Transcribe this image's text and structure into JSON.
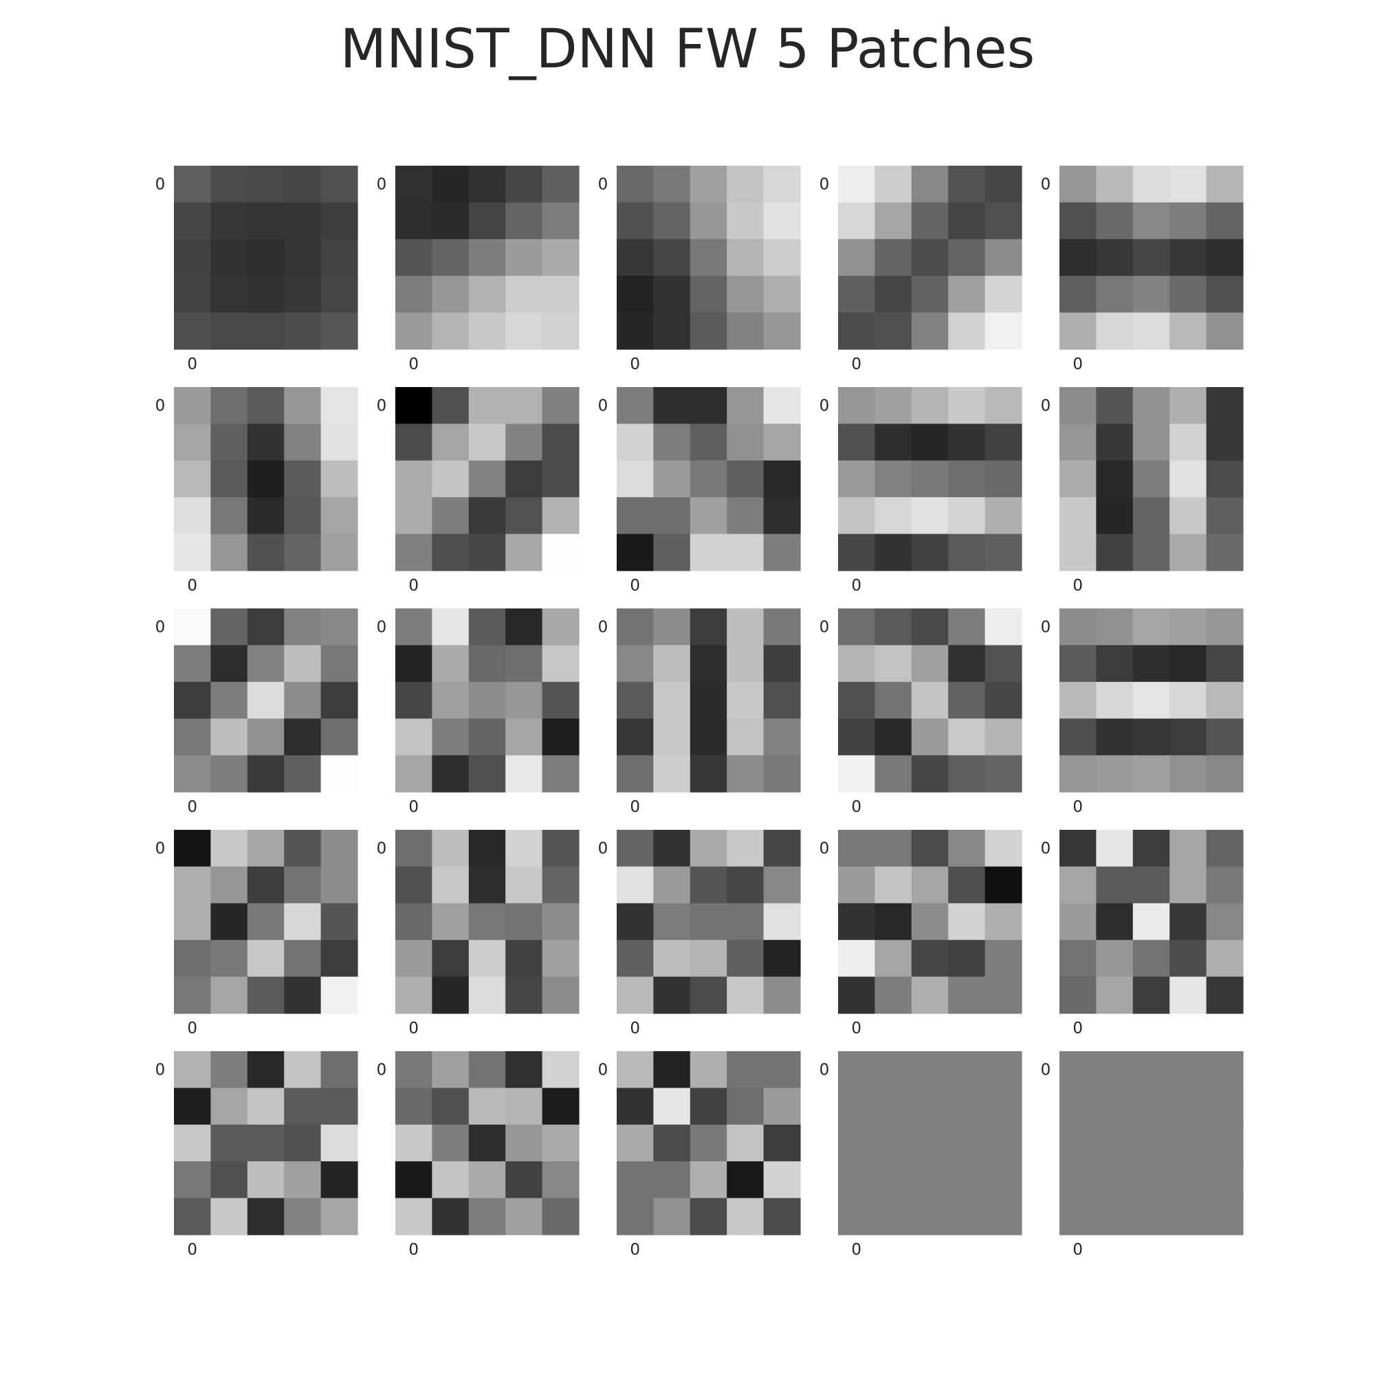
{
  "title": "MNIST_DNN FW 5 Patches",
  "chart_data": {
    "type": "heatmap",
    "title": "MNIST_DNN FW 5 Patches",
    "colormap": "gray",
    "grid": false,
    "layout": {
      "rows": 5,
      "cols": 5
    },
    "tick_label": "0",
    "patch_size": [
      5,
      5
    ],
    "patches": [
      [
        [
          95,
          75,
          72,
          70,
          80
        ],
        [
          70,
          55,
          52,
          53,
          62
        ],
        [
          65,
          50,
          45,
          52,
          66
        ],
        [
          66,
          52,
          50,
          55,
          70
        ],
        [
          78,
          72,
          72,
          75,
          86
        ]
      ],
      [
        [
          48,
          38,
          50,
          70,
          95
        ],
        [
          45,
          42,
          68,
          100,
          125
        ],
        [
          85,
          100,
          125,
          155,
          170
        ],
        [
          125,
          150,
          178,
          205,
          205
        ],
        [
          155,
          180,
          200,
          215,
          210
        ]
      ],
      [
        [
          105,
          120,
          160,
          195,
          215
        ],
        [
          80,
          100,
          150,
          200,
          225
        ],
        [
          55,
          70,
          120,
          180,
          205
        ],
        [
          35,
          50,
          100,
          150,
          175
        ],
        [
          38,
          50,
          90,
          130,
          150
        ]
      ],
      [
        [
          238,
          205,
          135,
          82,
          70
        ],
        [
          215,
          165,
          100,
          68,
          80
        ],
        [
          145,
          100,
          75,
          100,
          140
        ],
        [
          95,
          70,
          98,
          160,
          212
        ],
        [
          75,
          80,
          130,
          210,
          240
        ]
      ],
      [
        [
          150,
          185,
          220,
          225,
          182
        ],
        [
          80,
          105,
          135,
          125,
          100
        ],
        [
          45,
          55,
          70,
          55,
          45
        ],
        [
          95,
          120,
          130,
          105,
          80
        ],
        [
          175,
          215,
          220,
          185,
          145
        ]
      ],
      [
        [
          155,
          110,
          90,
          150,
          228
        ],
        [
          165,
          95,
          50,
          130,
          225
        ],
        [
          185,
          90,
          30,
          90,
          190
        ],
        [
          222,
          120,
          42,
          88,
          165
        ],
        [
          230,
          150,
          80,
          100,
          160
        ]
      ],
      [
        [
          0,
          80,
          178,
          178,
          128
        ],
        [
          75,
          165,
          200,
          130,
          75
        ],
        [
          172,
          195,
          130,
          60,
          75
        ],
        [
          172,
          125,
          58,
          82,
          178
        ],
        [
          128,
          78,
          70,
          168,
          253
        ]
      ],
      [
        [
          125,
          45,
          45,
          150,
          230
        ],
        [
          210,
          125,
          95,
          145,
          165
        ],
        [
          220,
          155,
          120,
          95,
          40
        ],
        [
          110,
          110,
          160,
          125,
          45
        ],
        [
          25,
          95,
          210,
          210,
          125
        ]
      ],
      [
        [
          150,
          160,
          180,
          200,
          185
        ],
        [
          80,
          45,
          38,
          50,
          65
        ],
        [
          155,
          130,
          120,
          110,
          105
        ],
        [
          195,
          215,
          225,
          212,
          175
        ],
        [
          70,
          50,
          65,
          90,
          95
        ]
      ],
      [
        [
          140,
          85,
          145,
          175,
          55
        ],
        [
          150,
          55,
          145,
          210,
          55
        ],
        [
          172,
          40,
          125,
          225,
          75
        ],
        [
          200,
          38,
          100,
          200,
          95
        ],
        [
          200,
          65,
          100,
          170,
          105
        ]
      ],
      [
        [
          250,
          100,
          60,
          130,
          135
        ],
        [
          125,
          45,
          130,
          190,
          120
        ],
        [
          60,
          125,
          220,
          140,
          60
        ],
        [
          120,
          190,
          145,
          45,
          110
        ],
        [
          140,
          125,
          58,
          95,
          253
        ]
      ],
      [
        [
          125,
          230,
          90,
          40,
          168
        ],
        [
          35,
          170,
          105,
          110,
          198
        ],
        [
          70,
          160,
          140,
          150,
          85
        ],
        [
          195,
          125,
          100,
          165,
          30
        ],
        [
          165,
          45,
          80,
          232,
          125
        ]
      ],
      [
        [
          115,
          140,
          60,
          190,
          120
        ],
        [
          135,
          190,
          45,
          190,
          62
        ],
        [
          90,
          200,
          42,
          200,
          80
        ],
        [
          55,
          200,
          42,
          195,
          130
        ],
        [
          110,
          205,
          55,
          140,
          120
        ]
      ],
      [
        [
          110,
          90,
          72,
          125,
          238
        ],
        [
          180,
          195,
          160,
          48,
          82
        ],
        [
          80,
          115,
          195,
          98,
          70
        ],
        [
          65,
          40,
          155,
          202,
          180
        ],
        [
          242,
          120,
          70,
          95,
          100
        ]
      ],
      [
        [
          140,
          145,
          165,
          160,
          150
        ],
        [
          90,
          60,
          45,
          40,
          70
        ],
        [
          185,
          215,
          228,
          215,
          185
        ],
        [
          78,
          50,
          55,
          60,
          85
        ],
        [
          150,
          155,
          160,
          145,
          135
        ]
      ],
      [
        [
          20,
          200,
          165,
          85,
          140
        ],
        [
          175,
          150,
          60,
          115,
          140
        ],
        [
          175,
          38,
          120,
          215,
          85
        ],
        [
          110,
          120,
          200,
          115,
          60
        ],
        [
          120,
          165,
          90,
          50,
          240
        ]
      ],
      [
        [
          110,
          190,
          40,
          210,
          85
        ],
        [
          80,
          200,
          45,
          200,
          100
        ],
        [
          105,
          160,
          120,
          115,
          140
        ],
        [
          155,
          60,
          205,
          65,
          160
        ],
        [
          175,
          38,
          220,
          70,
          140
        ]
      ],
      [
        [
          100,
          50,
          170,
          200,
          70
        ],
        [
          225,
          155,
          85,
          70,
          135
        ],
        [
          50,
          125,
          115,
          115,
          225
        ],
        [
          95,
          190,
          180,
          95,
          35
        ],
        [
          185,
          50,
          75,
          200,
          140
        ]
      ],
      [
        [
          120,
          120,
          75,
          135,
          210
        ],
        [
          155,
          195,
          165,
          78,
          15
        ],
        [
          50,
          40,
          140,
          210,
          175
        ],
        [
          238,
          165,
          70,
          65,
          125
        ],
        [
          50,
          125,
          175,
          125,
          125
        ]
      ],
      [
        [
          55,
          230,
          60,
          165,
          100
        ],
        [
          165,
          90,
          90,
          165,
          120
        ],
        [
          155,
          45,
          235,
          55,
          135
        ],
        [
          115,
          150,
          115,
          75,
          175
        ],
        [
          105,
          165,
          60,
          230,
          55
        ]
      ],
      [
        [
          178,
          125,
          40,
          195,
          110
        ],
        [
          30,
          165,
          195,
          90,
          90
        ],
        [
          200,
          90,
          90,
          80,
          220
        ],
        [
          120,
          80,
          190,
          160,
          35
        ],
        [
          90,
          200,
          45,
          130,
          165
        ]
      ],
      [
        [
          120,
          160,
          115,
          48,
          210
        ],
        [
          105,
          80,
          185,
          180,
          28
        ],
        [
          200,
          125,
          45,
          150,
          170
        ],
        [
          25,
          195,
          170,
          65,
          135
        ],
        [
          200,
          50,
          125,
          160,
          105
        ]
      ],
      [
        [
          185,
          35,
          175,
          115,
          115
        ],
        [
          50,
          230,
          65,
          110,
          155
        ],
        [
          170,
          75,
          120,
          195,
          60
        ],
        [
          115,
          115,
          175,
          25,
          210
        ],
        [
          115,
          145,
          75,
          200,
          75
        ]
      ],
      [
        [
          128,
          128,
          128,
          128,
          128
        ],
        [
          128,
          128,
          128,
          128,
          128
        ],
        [
          128,
          128,
          128,
          128,
          128
        ],
        [
          128,
          128,
          128,
          128,
          128
        ],
        [
          128,
          128,
          128,
          128,
          128
        ]
      ],
      [
        [
          128,
          128,
          128,
          128,
          128
        ],
        [
          128,
          128,
          128,
          128,
          128
        ],
        [
          128,
          128,
          128,
          128,
          128
        ],
        [
          128,
          128,
          128,
          128,
          128
        ],
        [
          128,
          128,
          128,
          128,
          128
        ]
      ]
    ]
  }
}
